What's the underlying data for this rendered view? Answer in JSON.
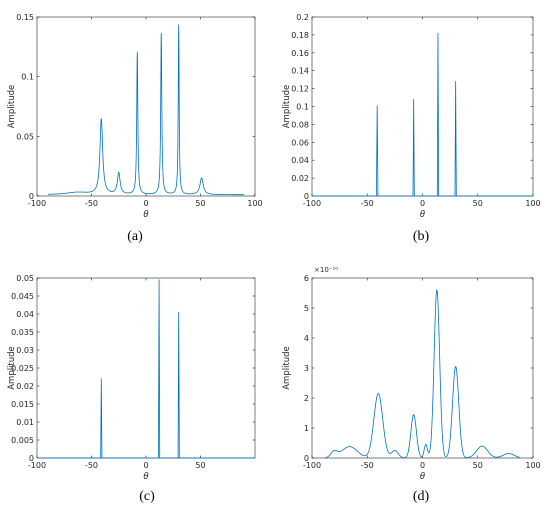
{
  "colors": {
    "line": "#0072BD",
    "axis": "#262626",
    "background": "#ffffff"
  },
  "chart_data": [
    {
      "type": "line",
      "panel_label": "(a)",
      "xlabel": "θ",
      "ylabel": "Amplitude",
      "xlim": [
        -100,
        100
      ],
      "ylim": [
        0,
        0.15
      ],
      "xticks": [
        "-100",
        "-50",
        "0",
        "50",
        "100"
      ],
      "yticks": [
        "0",
        "0.05",
        "0.1",
        "0.15"
      ],
      "exponent": "",
      "curve": {
        "kind": "lorentz",
        "x_range": [
          -90,
          90
        ],
        "baseline": 0.001,
        "bumps": [
          {
            "x": -63,
            "y": 0.002,
            "w": 12
          }
        ],
        "peaks": [
          {
            "x": -41,
            "y": 0.063,
            "w": 1.5
          },
          {
            "x": -25,
            "y": 0.018,
            "w": 1.5
          },
          {
            "x": -8,
            "y": 0.119,
            "w": 0.6
          },
          {
            "x": 14,
            "y": 0.135,
            "w": 0.6
          },
          {
            "x": 30,
            "y": 0.142,
            "w": 0.5
          },
          {
            "x": 51,
            "y": 0.014,
            "w": 1.8
          }
        ]
      }
    },
    {
      "type": "line",
      "panel_label": "(b)",
      "xlabel": "θ",
      "ylabel": "Amplitude",
      "xlim": [
        -100,
        100
      ],
      "ylim": [
        0,
        0.2
      ],
      "xticks": [
        "-100",
        "-50",
        "0",
        "50",
        "100"
      ],
      "yticks": [
        "0",
        "0.02",
        "0.04",
        "0.06",
        "0.08",
        "0.1",
        "0.12",
        "0.14",
        "0.16",
        "0.18",
        "0.2"
      ],
      "exponent": "",
      "curve": {
        "kind": "spikes",
        "x_range": [
          -100,
          100
        ],
        "baseline": 0,
        "peaks": [
          {
            "x": -41,
            "y": 0.101,
            "w": 0.7
          },
          {
            "x": -8,
            "y": 0.108,
            "w": 0.6
          },
          {
            "x": 14,
            "y": 0.182,
            "w": 0.6
          },
          {
            "x": 30,
            "y": 0.128,
            "w": 0.6
          }
        ]
      }
    },
    {
      "type": "line",
      "panel_label": "(c)",
      "xlabel": "θ",
      "ylabel": "Amplitude",
      "xlim": [
        -100,
        100
      ],
      "ylim": [
        0,
        0.05
      ],
      "xticks": [
        "-100",
        "-50",
        "0",
        "50"
      ],
      "yticks": [
        "0",
        "0.005",
        "0.01",
        "0.015",
        "0.02",
        "0.025",
        "0.03",
        "0.035",
        "0.04",
        "0.045",
        "0.05"
      ],
      "exponent": "",
      "curve": {
        "kind": "spikes",
        "x_range": [
          -100,
          100
        ],
        "baseline": 0,
        "peaks": [
          {
            "x": -41,
            "y": 0.022,
            "w": 0.6
          },
          {
            "x": 12,
            "y": 0.0495,
            "w": 0.6
          },
          {
            "x": 30,
            "y": 0.0405,
            "w": 0.6
          }
        ]
      }
    },
    {
      "type": "line",
      "panel_label": "(d)",
      "xlabel": "θ",
      "ylabel": "Amplitude",
      "xlim": [
        -100,
        100
      ],
      "ylim": [
        0,
        6
      ],
      "xticks": [
        "-100",
        "-50",
        "0",
        "50",
        "100"
      ],
      "yticks": [
        "0",
        "1",
        "2",
        "3",
        "4",
        "5",
        "6"
      ],
      "exponent": "×10⁻¹⁰",
      "curve": {
        "kind": "gauss",
        "x_range": [
          -88,
          88
        ],
        "baseline": 0,
        "peaks": [
          {
            "x": -80,
            "y": 0.2,
            "w": 3
          },
          {
            "x": -66,
            "y": 0.38,
            "w": 7
          },
          {
            "x": -40,
            "y": 2.15,
            "w": 4
          },
          {
            "x": -25,
            "y": 0.25,
            "w": 3
          },
          {
            "x": -8,
            "y": 1.45,
            "w": 2.5
          },
          {
            "x": 3,
            "y": 0.45,
            "w": 1.5
          },
          {
            "x": 13,
            "y": 5.6,
            "w": 2.5
          },
          {
            "x": 30,
            "y": 3.05,
            "w": 2.8
          },
          {
            "x": 54,
            "y": 0.4,
            "w": 5
          },
          {
            "x": 78,
            "y": 0.15,
            "w": 5
          }
        ]
      }
    }
  ]
}
